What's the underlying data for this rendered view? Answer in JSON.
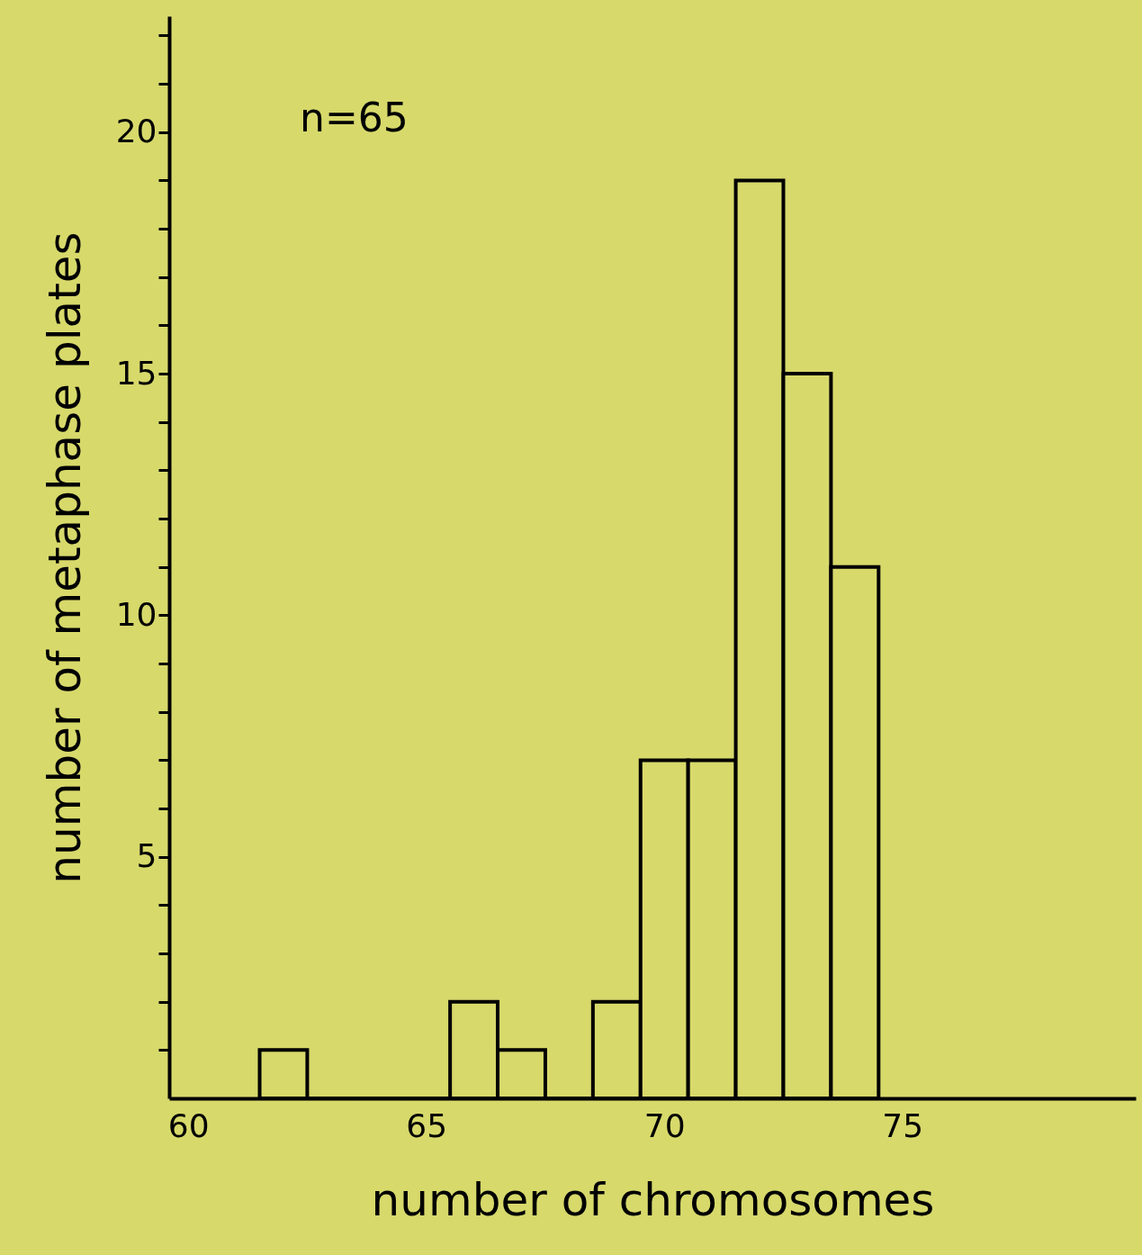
{
  "chart_data": {
    "type": "histogram",
    "xlabel": "number of chromosomes",
    "ylabel": "number of metaphase plates",
    "bins": [
      61.5,
      62.5,
      63.5,
      64.5,
      65.5,
      66.5,
      67.5,
      68.5,
      69.5,
      70.5,
      71.5,
      72.5,
      73.5,
      74.5
    ],
    "values": [
      1,
      0,
      0,
      0,
      2,
      1,
      0,
      2,
      7,
      7,
      19,
      15,
      11
    ],
    "color": "#000000",
    "xlim": [
      59.6,
      79.9
    ],
    "xticks": [
      60,
      65,
      70,
      75
    ],
    "ylim": [
      0,
      22.4
    ],
    "yticks": [
      {
        "value": 1,
        "label": null
      },
      {
        "value": 2,
        "label": null
      },
      {
        "value": 3,
        "label": null
      },
      {
        "value": 4,
        "label": null
      },
      5,
      {
        "value": 6,
        "label": null
      },
      {
        "value": 7,
        "label": null
      },
      {
        "value": 8,
        "label": null
      },
      {
        "value": 9,
        "label": null
      },
      10,
      {
        "value": 11,
        "label": null
      },
      {
        "value": 12,
        "label": null
      },
      {
        "value": 13,
        "label": null
      },
      {
        "value": 14,
        "label": null
      },
      15,
      {
        "value": 16,
        "label": null
      },
      {
        "value": 17,
        "label": null
      },
      {
        "value": 18,
        "label": null
      },
      {
        "value": 19,
        "label": null
      },
      20,
      {
        "value": 21,
        "label": null
      },
      {
        "value": 22,
        "label": null
      }
    ],
    "annotations": [
      "n=65"
    ],
    "grid": false
  }
}
